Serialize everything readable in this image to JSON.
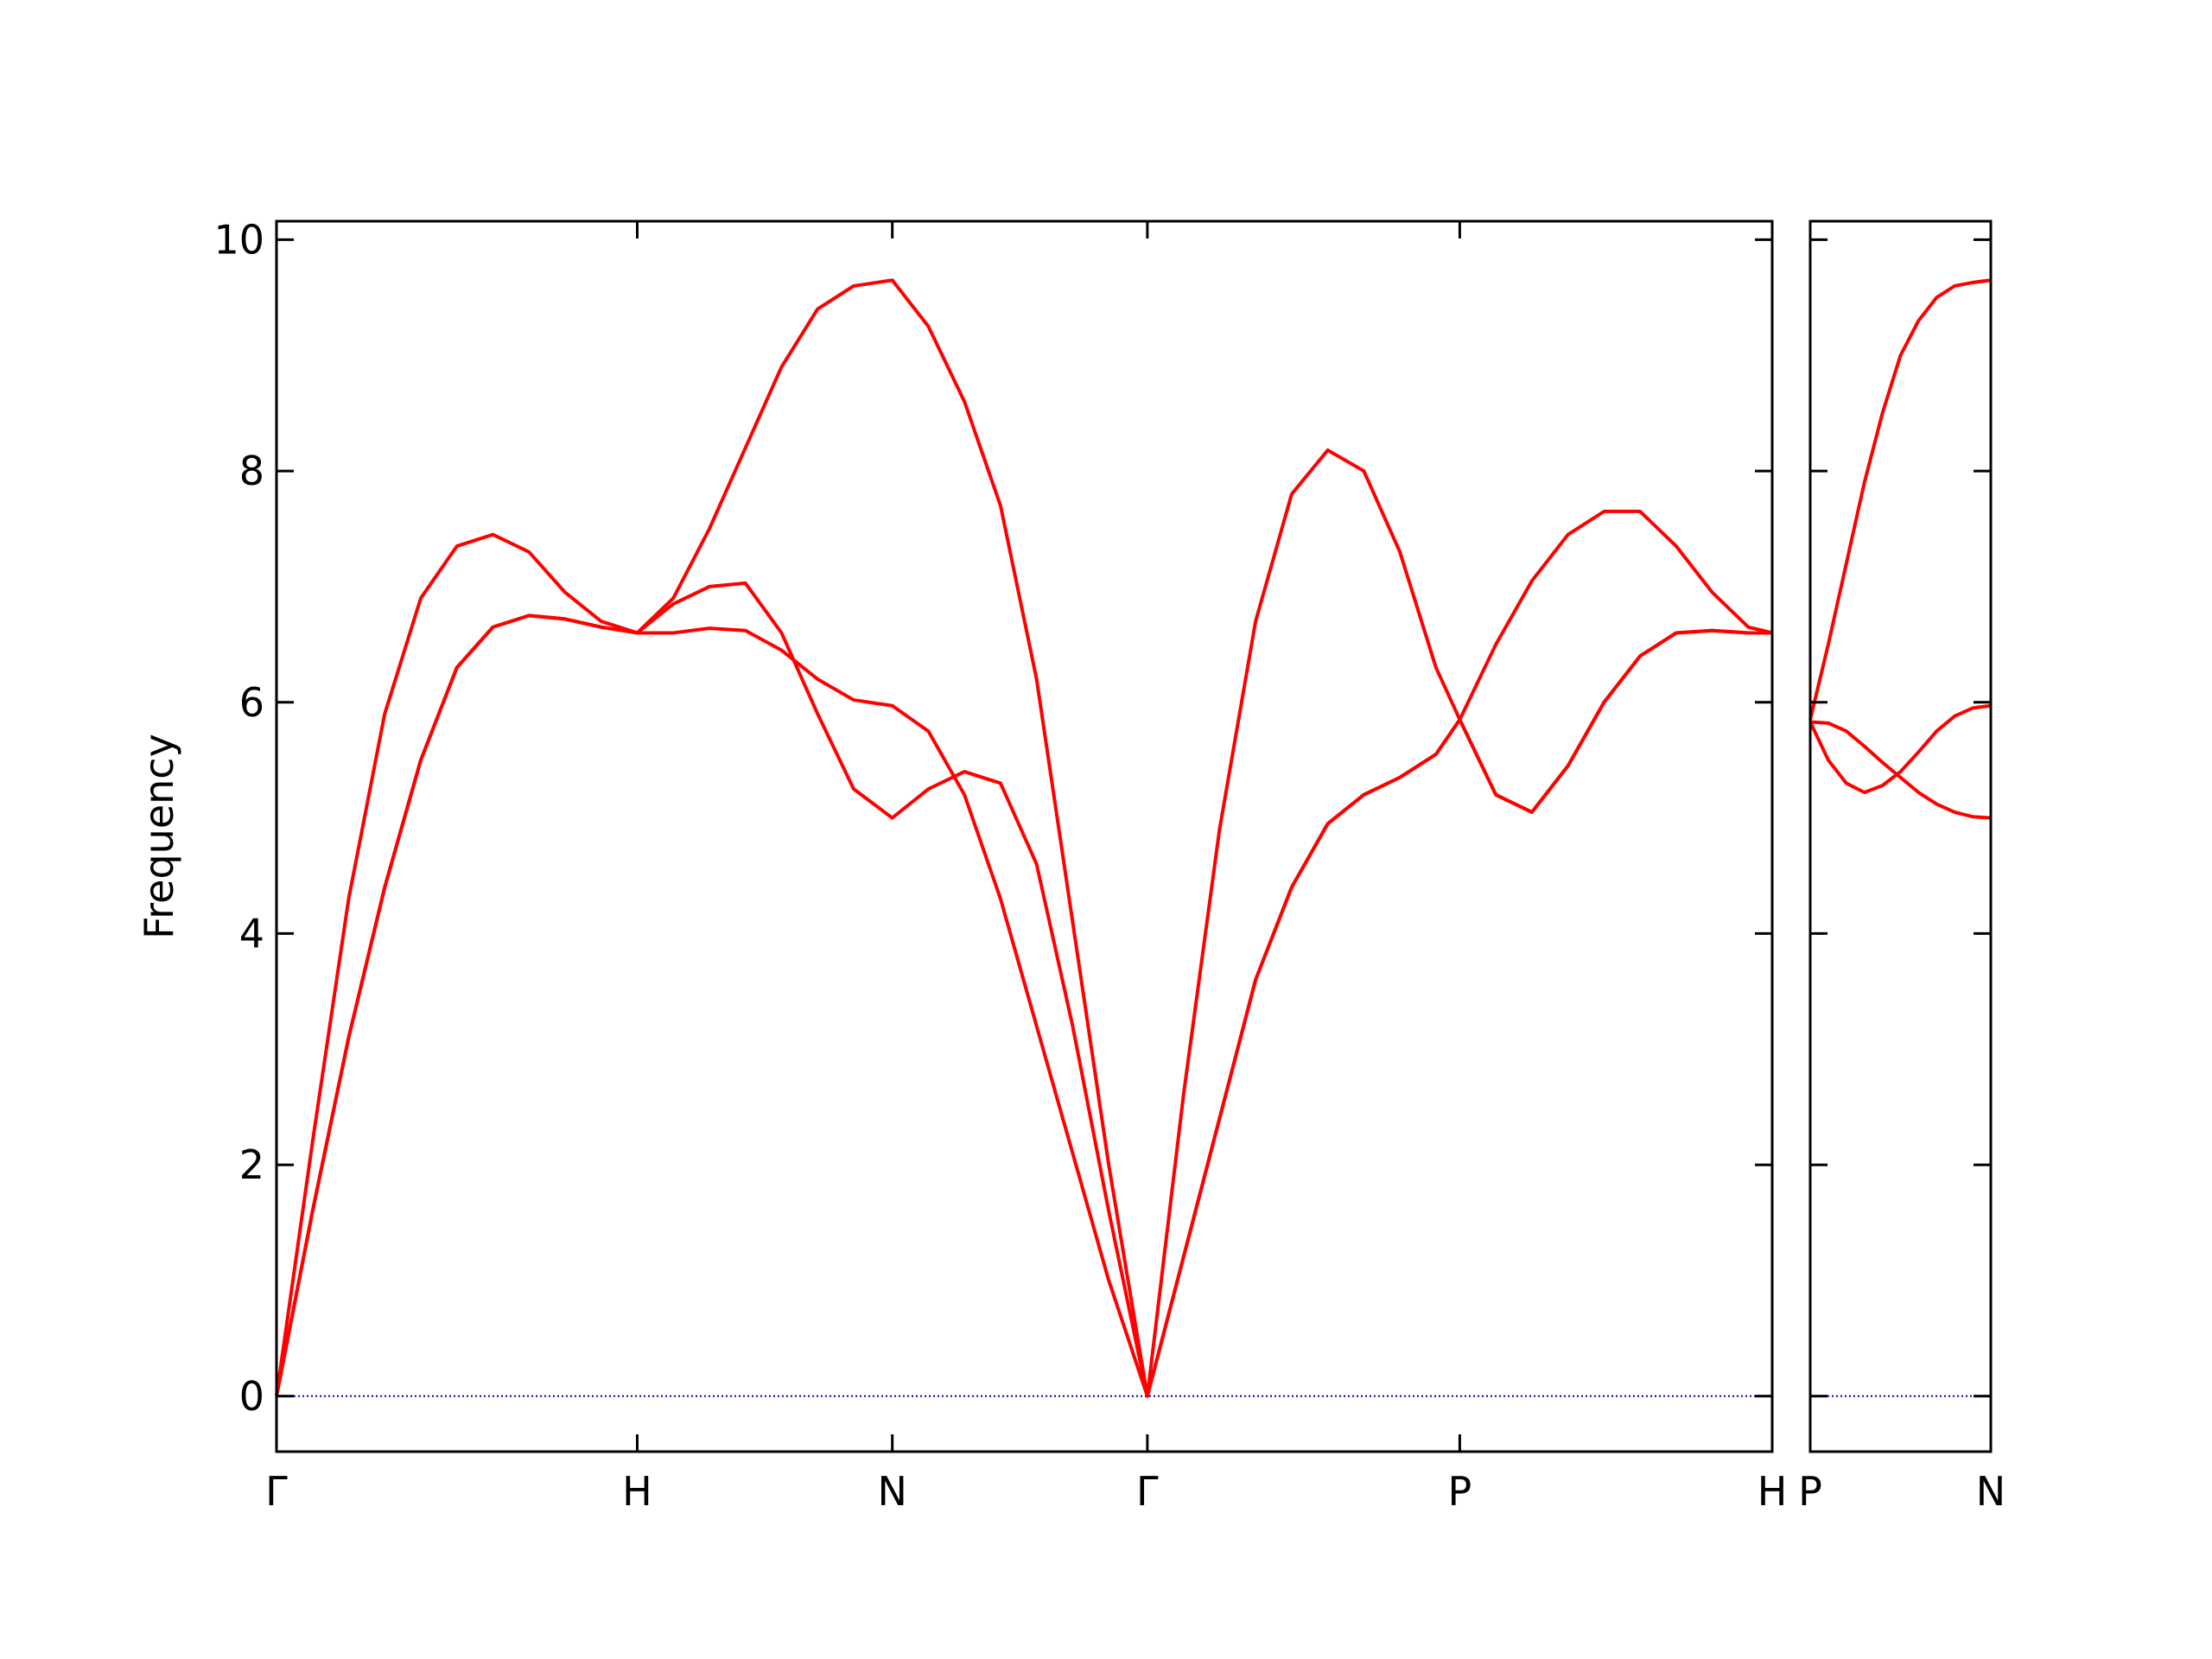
{
  "chart_data": [
    {
      "type": "line",
      "ylabel": "Frequency",
      "x": [
        0,
        0.1,
        0.2,
        0.3,
        0.4,
        0.5,
        0.6,
        0.7,
        0.8,
        0.9,
        1.0,
        1.1,
        1.2,
        1.3,
        1.4,
        1.5,
        1.6,
        1.7071,
        1.8071,
        1.9071,
        2.0071,
        2.1071,
        2.2071,
        2.3071,
        2.4142,
        2.5142,
        2.6142,
        2.7142,
        2.8142,
        2.9142,
        3.0142,
        3.1142,
        3.2142,
        3.2802,
        3.3802,
        3.4802,
        3.5802,
        3.6802,
        3.7802,
        3.8802,
        3.9802,
        4.0802,
        4.1463
      ],
      "series": [
        {
          "color": "#ff0000",
          "values": [
            0,
            2.2,
            4.3,
            5.9,
            6.9,
            7.35,
            7.45,
            7.3,
            6.95,
            6.7,
            6.6,
            6.9,
            7.5,
            8.2,
            8.9,
            9.4,
            9.6,
            9.65,
            9.25,
            8.6,
            7.7,
            6.2,
            4.1,
            2.0,
            0,
            2.6,
            4.9,
            6.7,
            7.8,
            8.18,
            8.0,
            7.3,
            6.3,
            5.85,
            5.2,
            5.05,
            5.45,
            6.0,
            6.4,
            6.6,
            6.62,
            6.6,
            6.6
          ]
        },
        {
          "color": "#ff0000",
          "values": [
            0,
            1.6,
            3.1,
            4.4,
            5.5,
            6.3,
            6.65,
            6.75,
            6.72,
            6.65,
            6.6,
            6.85,
            7.0,
            7.03,
            6.6,
            5.9,
            5.25,
            5.0,
            5.25,
            5.4,
            5.3,
            4.6,
            3.2,
            1.6,
            0,
            1.2,
            2.4,
            3.6,
            4.4,
            4.95,
            5.2,
            5.35,
            5.55,
            5.85,
            6.5,
            7.05,
            7.45,
            7.65,
            7.65,
            7.35,
            6.95,
            6.65,
            6.6
          ]
        },
        {
          "color": "#ff0000",
          "values": [
            0,
            1.6,
            3.1,
            4.4,
            5.5,
            6.3,
            6.65,
            6.75,
            6.72,
            6.65,
            6.6,
            6.6,
            6.64,
            6.62,
            6.45,
            6.2,
            6.02,
            5.97,
            5.75,
            5.2,
            4.3,
            3.2,
            2.1,
            1.0,
            0,
            1.2,
            2.4,
            3.6,
            4.4,
            4.95,
            5.2,
            5.35,
            5.55,
            5.85,
            5.2,
            5.05,
            5.45,
            6.0,
            6.4,
            6.6,
            6.62,
            6.6,
            6.6
          ]
        }
      ],
      "xlim": [
        0,
        4.1463
      ],
      "xticks": [
        {
          "value": 0,
          "label": "Γ"
        },
        {
          "value": 1.0,
          "label": "H"
        },
        {
          "value": 1.7071,
          "label": "N"
        },
        {
          "value": 2.4142,
          "label": "Γ"
        },
        {
          "value": 3.2802,
          "label": "P"
        },
        {
          "value": 4.1463,
          "label": "H"
        }
      ],
      "ylim": [
        -0.48,
        10.16
      ],
      "yticks": [
        0,
        2,
        4,
        6,
        8,
        10
      ],
      "show_ytick_labels": true,
      "hline": {
        "value": 0,
        "color": "#0000aa"
      }
    },
    {
      "type": "line",
      "x": [
        0,
        0.05,
        0.1,
        0.15,
        0.2,
        0.25,
        0.3,
        0.35,
        0.4,
        0.45,
        0.5
      ],
      "series": [
        {
          "color": "#ff0000",
          "values": [
            5.85,
            6.5,
            7.2,
            7.9,
            8.5,
            9.0,
            9.3,
            9.5,
            9.6,
            9.63,
            9.65
          ]
        },
        {
          "color": "#ff0000",
          "values": [
            5.83,
            5.5,
            5.3,
            5.22,
            5.28,
            5.4,
            5.57,
            5.75,
            5.88,
            5.95,
            5.97
          ]
        },
        {
          "color": "#ff0000",
          "values": [
            5.83,
            5.82,
            5.75,
            5.62,
            5.48,
            5.35,
            5.22,
            5.12,
            5.05,
            5.01,
            5.0
          ]
        }
      ],
      "xlim": [
        0,
        0.5
      ],
      "xticks": [
        {
          "value": 0,
          "label": "P"
        },
        {
          "value": 0.5,
          "label": "N"
        }
      ],
      "ylim": [
        -0.48,
        10.16
      ],
      "yticks": [
        0,
        2,
        4,
        6,
        8,
        10
      ],
      "show_ytick_labels": false,
      "hline": {
        "value": 0,
        "color": "#0000aa"
      }
    }
  ]
}
